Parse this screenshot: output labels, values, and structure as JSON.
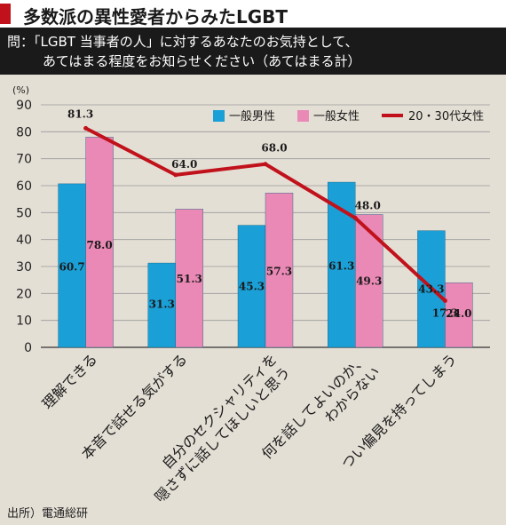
{
  "header": {
    "title": "多数派の異性愛者からみたLGBT",
    "accent_color": "#c1121b"
  },
  "question": {
    "line1": "問：「LGBT 当事者の人」に対するあなたのお気持として、",
    "line2": "あてはまる程度をお知らせください（あてはまる計）"
  },
  "source": "出所）電通総研",
  "chart_data": {
    "type": "bar",
    "ylabel": "(%)",
    "ylim": [
      0,
      90
    ],
    "yticks": [
      0,
      10,
      20,
      30,
      40,
      50,
      60,
      70,
      80,
      90
    ],
    "grid": true,
    "legend_position": "top-right",
    "categories": [
      [
        "理解できる"
      ],
      [
        "本音で話せる気がする"
      ],
      [
        "自分のセクシャリティを",
        "隠さずに話してほしいと思う"
      ],
      [
        "何を話してよいのか、",
        "わからない"
      ],
      [
        "つい偏見を持ってしまう"
      ]
    ],
    "series": [
      {
        "name": "一般男性",
        "type": "bar",
        "color": "#1a9fd6",
        "values": [
          60.7,
          31.3,
          45.3,
          61.3,
          43.3
        ]
      },
      {
        "name": "一般女性",
        "type": "bar",
        "color": "#ea89b6",
        "values": [
          78.0,
          51.3,
          57.3,
          49.3,
          24.0
        ]
      },
      {
        "name": "20・30代女性",
        "type": "line",
        "color": "#c1121b",
        "values": [
          81.3,
          64.0,
          68.0,
          48.0,
          17.3
        ]
      }
    ]
  }
}
